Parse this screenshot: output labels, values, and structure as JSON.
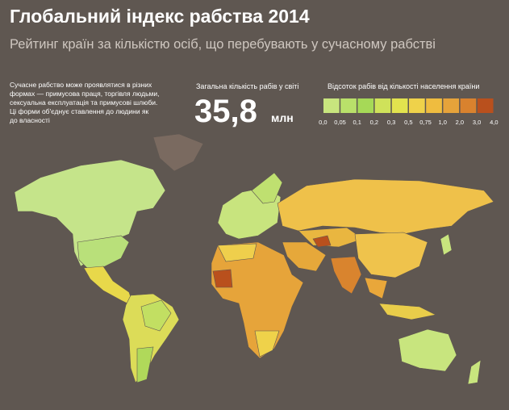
{
  "header": {
    "title": "Глобальний індекс рабства 2014",
    "subtitle": "Рейтинг країн за кількістю осіб, що перебувають у сучасному рабстві"
  },
  "description": [
    "Сучасне рабство може проявлятися в різних",
    "формах — примусова праця, торгівля людьми,",
    "сексуальна експлуатація та примусові шлюби.",
    "Ці форми об'єднує ставлення до людини як",
    "до власності"
  ],
  "total": {
    "label": "Загальна кількість рабів у світі",
    "value": "35,8",
    "unit": "млн"
  },
  "legend": {
    "title": "Відсоток рабів від кількості населення країни",
    "colors": [
      "#c8e57e",
      "#b9e06a",
      "#a6d957",
      "#cfe25a",
      "#e2e34e",
      "#efd24a",
      "#efbc3f",
      "#e6a33a",
      "#d9822e",
      "#b9501d"
    ],
    "labels": [
      "0,0",
      "0,05",
      "0,1",
      "0,2",
      "0,3",
      "0,5",
      "0,75",
      "1,0",
      "2,0",
      "3,0",
      "4,0"
    ]
  }
}
